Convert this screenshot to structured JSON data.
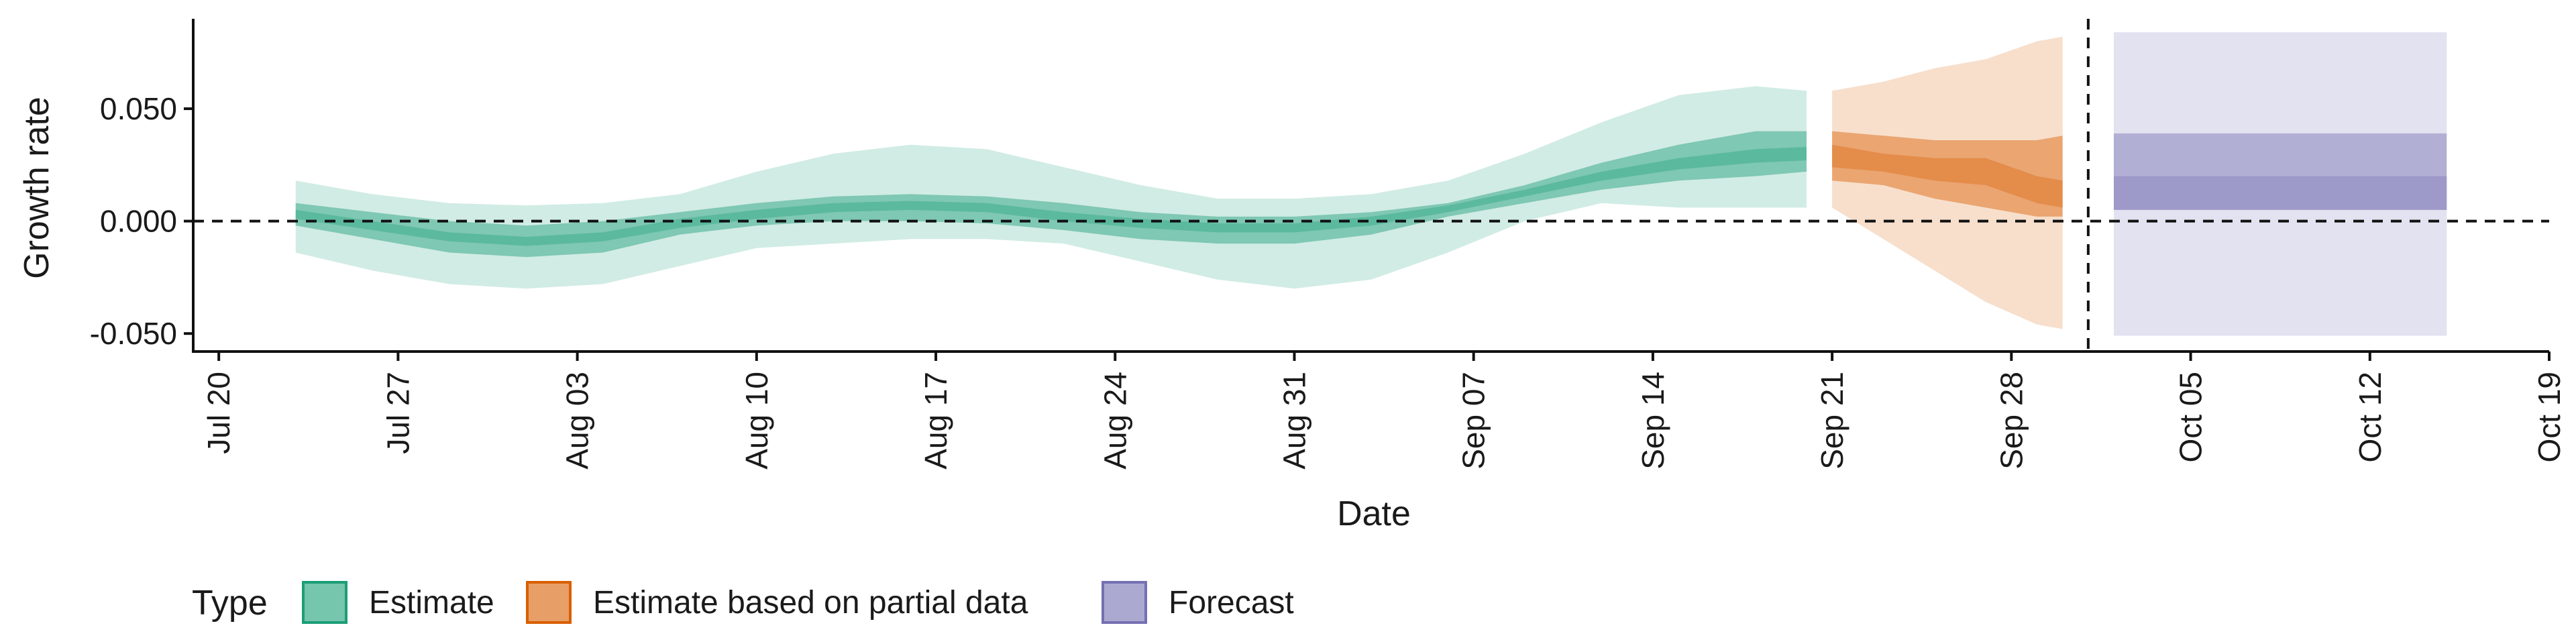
{
  "chart_data": {
    "type": "area",
    "xlabel": "Date",
    "ylabel": "Growth rate",
    "x_ticks": [
      "Jul 20",
      "Jul 27",
      "Aug 03",
      "Aug 10",
      "Aug 17",
      "Aug 24",
      "Aug 31",
      "Sep 07",
      "Sep 14",
      "Sep 21",
      "Sep 28",
      "Oct 05",
      "Oct 12",
      "Oct 19"
    ],
    "x_tick_dates": [
      "2020-07-20",
      "2020-07-27",
      "2020-08-03",
      "2020-08-10",
      "2020-08-17",
      "2020-08-24",
      "2020-08-31",
      "2020-09-07",
      "2020-09-14",
      "2020-09-21",
      "2020-09-28",
      "2020-10-05",
      "2020-10-12",
      "2020-10-19"
    ],
    "xlim": [
      "2020-07-19",
      "2020-10-19"
    ],
    "y_ticks": [
      "-0.050",
      "0.000",
      "0.050"
    ],
    "y_tick_values": [
      -0.05,
      0.0,
      0.05
    ],
    "ylim": [
      -0.058,
      0.09
    ],
    "reference_lines": {
      "y": 0.0,
      "x": "2020-10-01"
    },
    "legend": {
      "title": "Type",
      "position": "bottom-left",
      "entries": [
        "Estimate",
        "Estimate based on partial data",
        "Forecast"
      ]
    },
    "colors": {
      "Estimate": "#1b9e77",
      "Estimate based on partial data": "#d95f02",
      "Forecast": "#7570b3"
    },
    "series": [
      {
        "type_key": "Estimate",
        "x": [
          "2020-07-23",
          "2020-07-26",
          "2020-07-29",
          "2020-08-01",
          "2020-08-04",
          "2020-08-07",
          "2020-08-10",
          "2020-08-13",
          "2020-08-16",
          "2020-08-19",
          "2020-08-22",
          "2020-08-25",
          "2020-08-28",
          "2020-08-31",
          "2020-09-03",
          "2020-09-06",
          "2020-09-09",
          "2020-09-12",
          "2020-09-15",
          "2020-09-18",
          "2020-09-20"
        ],
        "lower_90": [
          -0.014,
          -0.022,
          -0.028,
          -0.03,
          -0.028,
          -0.02,
          -0.012,
          -0.01,
          -0.008,
          -0.008,
          -0.01,
          -0.018,
          -0.026,
          -0.03,
          -0.026,
          -0.014,
          0.0,
          0.008,
          0.006,
          0.006,
          0.006
        ],
        "upper_90": [
          0.018,
          0.012,
          0.008,
          0.007,
          0.008,
          0.012,
          0.022,
          0.03,
          0.034,
          0.032,
          0.024,
          0.016,
          0.01,
          0.01,
          0.012,
          0.018,
          0.03,
          0.044,
          0.056,
          0.06,
          0.058
        ],
        "lower_50": [
          -0.002,
          -0.008,
          -0.014,
          -0.016,
          -0.014,
          -0.006,
          -0.002,
          0.0,
          0.0,
          -0.001,
          -0.004,
          -0.008,
          -0.01,
          -0.01,
          -0.006,
          0.002,
          0.008,
          0.014,
          0.018,
          0.02,
          0.022
        ],
        "upper_50": [
          0.008,
          0.004,
          0.0,
          -0.002,
          0.0,
          0.004,
          0.008,
          0.011,
          0.012,
          0.011,
          0.008,
          0.004,
          0.002,
          0.002,
          0.004,
          0.008,
          0.016,
          0.026,
          0.034,
          0.04,
          0.04
        ],
        "lower_20": [
          0.001,
          -0.004,
          -0.009,
          -0.011,
          -0.009,
          -0.003,
          0.001,
          0.004,
          0.005,
          0.004,
          0.0,
          -0.003,
          -0.005,
          -0.005,
          -0.002,
          0.004,
          0.011,
          0.018,
          0.023,
          0.026,
          0.027
        ],
        "upper_20": [
          0.005,
          0.0,
          -0.005,
          -0.007,
          -0.005,
          0.001,
          0.005,
          0.008,
          0.009,
          0.008,
          0.004,
          0.001,
          -0.001,
          -0.001,
          0.002,
          0.007,
          0.014,
          0.022,
          0.028,
          0.032,
          0.033
        ]
      },
      {
        "type_key": "Estimate based on partial data",
        "x": [
          "2020-09-21",
          "2020-09-23",
          "2020-09-25",
          "2020-09-27",
          "2020-09-29",
          "2020-09-30"
        ],
        "lower_90": [
          0.006,
          -0.008,
          -0.022,
          -0.036,
          -0.046,
          -0.048
        ],
        "upper_90": [
          0.058,
          0.062,
          0.068,
          0.072,
          0.08,
          0.082
        ],
        "lower_50": [
          0.018,
          0.016,
          0.01,
          0.006,
          0.002,
          0.002
        ],
        "upper_50": [
          0.04,
          0.038,
          0.036,
          0.036,
          0.036,
          0.038
        ],
        "lower_20": [
          0.024,
          0.022,
          0.018,
          0.016,
          0.008,
          0.006
        ],
        "upper_20": [
          0.034,
          0.03,
          0.028,
          0.028,
          0.02,
          0.018
        ]
      },
      {
        "type_key": "Forecast",
        "x": [
          "2020-10-02",
          "2020-10-15"
        ],
        "lower_90": [
          -0.051,
          -0.051
        ],
        "upper_90": [
          0.084,
          0.084
        ],
        "lower_50": [
          0.005,
          0.005
        ],
        "upper_50": [
          0.039,
          0.039
        ],
        "lower_20": [
          0.005,
          0.005
        ],
        "upper_20": [
          0.02,
          0.02
        ]
      }
    ]
  }
}
